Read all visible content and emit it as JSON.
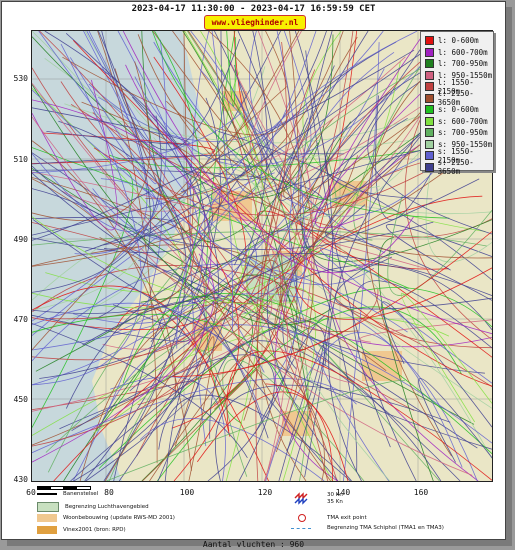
{
  "header": {
    "title": "2023-04-17 11:30:00 - 2023-04-17 16:59:59 CET",
    "brand": "www.vlieghinder.nl"
  },
  "axes": {
    "y_ticks": [
      "530",
      "510",
      "490",
      "470",
      "450",
      "430"
    ],
    "x_ticks": [
      "60",
      "80",
      "100",
      "120",
      "140",
      "160"
    ]
  },
  "legend": [
    {
      "label": "l: 0-600m",
      "color": "#e01010"
    },
    {
      "label": "l: 600-700m",
      "color": "#a020c0"
    },
    {
      "label": "l: 700-950m",
      "color": "#208020"
    },
    {
      "label": "l: 950-1550m",
      "color": "#d06080"
    },
    {
      "label": "l: 1550-2150m",
      "color": "#c04040"
    },
    {
      "label": "l: 2150-3650m",
      "color": "#a05030"
    },
    {
      "label": "s: 0-600m",
      "color": "#20c020"
    },
    {
      "label": "s: 600-700m",
      "color": "#80e040"
    },
    {
      "label": "s: 700-950m",
      "color": "#60b060"
    },
    {
      "label": "s: 950-1550m",
      "color": "#a0d0a0"
    },
    {
      "label": "s: 1550-2150m",
      "color": "#6060d0"
    },
    {
      "label": "s: 2150-3650m",
      "color": "#404090"
    }
  ],
  "bottom_legend": {
    "runway": "Banenstelsel",
    "airport_boundary": "Begrenzing Luchthavengebied",
    "residential": "Woonbebouwing (update RWS-MD 2001)",
    "vinex": "Vinex2001 (bron: RPD)",
    "wind_30": "30 Kn",
    "wind_35": "35 Kn",
    "tma_exit": "TMA exit point",
    "tma_boundary": "Begrenzing TMA Schiphol  (TMA1 en TMA3)"
  },
  "footer": {
    "count": "Aantal vluchten : 960"
  },
  "colors": {
    "sea": "#c7d8dc",
    "land": "#eae6c6",
    "residential": "#f0c890",
    "vinex": "#e0a040",
    "airport": "#c8e0c0"
  }
}
